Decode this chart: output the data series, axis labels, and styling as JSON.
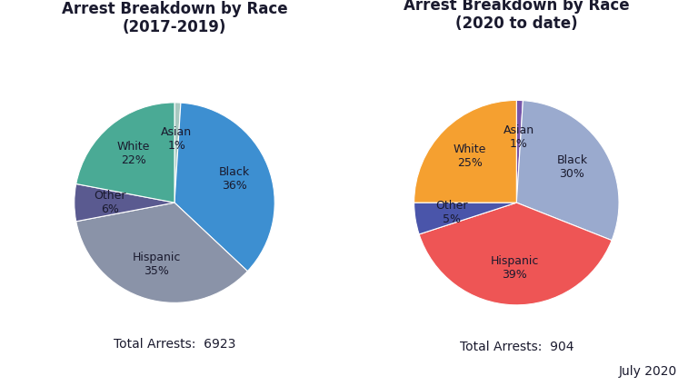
{
  "chart1": {
    "title": "Arrest Breakdown by Race\n(2017-2019)",
    "labels": [
      "Asian",
      "Black",
      "Hispanic",
      "Other",
      "White"
    ],
    "values": [
      1,
      36,
      35,
      6,
      22
    ],
    "colors": [
      "#a8c8c0",
      "#3d8fd1",
      "#8a93a8",
      "#5a5a90",
      "#4aaa95"
    ],
    "total_text": "Total Arrests:  6923",
    "startangle": 90
  },
  "chart2": {
    "title": "Arrest Breakdown by Race\n(2020 to date)",
    "labels": [
      "Asian",
      "Black",
      "Hispanic",
      "Other",
      "White"
    ],
    "values": [
      1,
      30,
      39,
      5,
      25
    ],
    "colors": [
      "#7755aa",
      "#9aaace",
      "#ee5555",
      "#4a55aa",
      "#f5a030"
    ],
    "total_text": "Total Arrests:  904",
    "startangle": 90
  },
  "footer": "July 2020",
  "bg_color": "#ffffff",
  "text_color": "#1a1a2e",
  "label_fontsize": 9,
  "title_fontsize": 12
}
